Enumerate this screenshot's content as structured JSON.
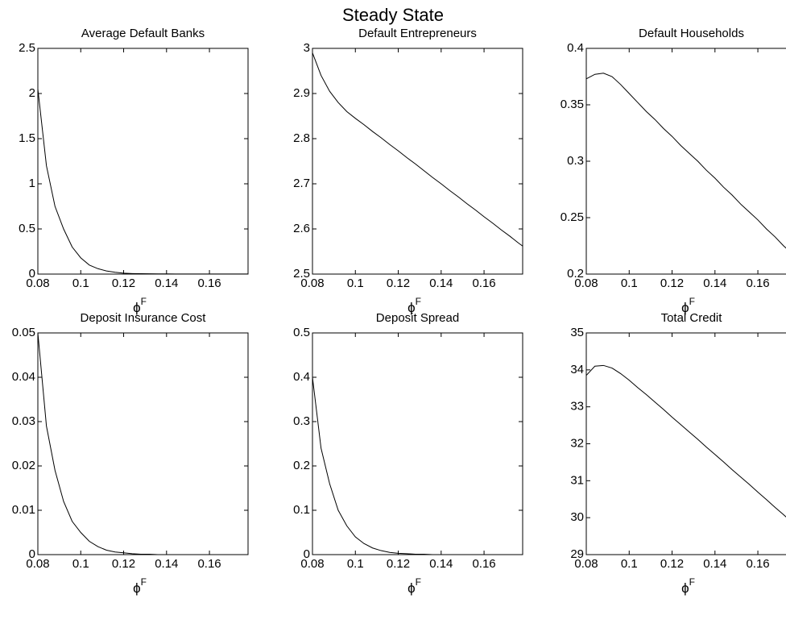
{
  "title": "Steady State",
  "chart_data": [
    {
      "type": "line",
      "title": "Average Default Banks",
      "xlabel": {
        "symbol": "ϕ",
        "superscript": "F"
      },
      "xlim": [
        0.08,
        0.178
      ],
      "xticks": [
        0.08,
        0.1,
        0.12,
        0.14,
        0.16
      ],
      "ylim": [
        0,
        2.5
      ],
      "yticks": [
        0,
        0.5,
        1,
        1.5,
        2,
        2.5
      ],
      "x": [
        0.08,
        0.084,
        0.088,
        0.092,
        0.096,
        0.1,
        0.104,
        0.108,
        0.112,
        0.116,
        0.12,
        0.124,
        0.128,
        0.132,
        0.136,
        0.14,
        0.144,
        0.148,
        0.152,
        0.156,
        0.16,
        0.164,
        0.168,
        0.172,
        0.176,
        0.178
      ],
      "series": [
        {
          "color": "#000000",
          "values": [
            2.05,
            1.2,
            0.75,
            0.5,
            0.3,
            0.18,
            0.1,
            0.06,
            0.035,
            0.02,
            0.01,
            0.006,
            0.004,
            0.003,
            0.002,
            0.002,
            0.001,
            0.001,
            0.001,
            0.001,
            0.001,
            0.001,
            0.001,
            0.001,
            0.001,
            0.001
          ]
        }
      ]
    },
    {
      "type": "line",
      "title": "Default Entrepreneurs",
      "xlabel": {
        "symbol": "ϕ",
        "superscript": "F"
      },
      "xlim": [
        0.08,
        0.178
      ],
      "xticks": [
        0.08,
        0.1,
        0.12,
        0.14,
        0.16
      ],
      "ylim": [
        2.5,
        3
      ],
      "yticks": [
        2.5,
        2.6,
        2.7,
        2.8,
        2.9,
        3
      ],
      "x": [
        0.08,
        0.084,
        0.088,
        0.092,
        0.096,
        0.1,
        0.104,
        0.108,
        0.112,
        0.116,
        0.12,
        0.124,
        0.128,
        0.132,
        0.136,
        0.14,
        0.144,
        0.148,
        0.152,
        0.156,
        0.16,
        0.164,
        0.168,
        0.172,
        0.176,
        0.178
      ],
      "series": [
        {
          "color": "#000000",
          "values": [
            2.99,
            2.94,
            2.905,
            2.88,
            2.86,
            2.845,
            2.831,
            2.816,
            2.802,
            2.787,
            2.773,
            2.758,
            2.744,
            2.729,
            2.714,
            2.7,
            2.685,
            2.671,
            2.656,
            2.642,
            2.627,
            2.613,
            2.598,
            2.584,
            2.569,
            2.562
          ]
        }
      ]
    },
    {
      "type": "line",
      "title": "Default Households",
      "xlabel": {
        "symbol": "ϕ",
        "superscript": "F"
      },
      "xlim": [
        0.08,
        0.178
      ],
      "xticks": [
        0.08,
        0.1,
        0.12,
        0.14,
        0.16
      ],
      "ylim": [
        0.2,
        0.4
      ],
      "yticks": [
        0.2,
        0.25,
        0.3,
        0.35,
        0.4
      ],
      "x": [
        0.08,
        0.084,
        0.088,
        0.092,
        0.096,
        0.1,
        0.104,
        0.108,
        0.112,
        0.116,
        0.12,
        0.124,
        0.128,
        0.132,
        0.136,
        0.14,
        0.144,
        0.148,
        0.152,
        0.156,
        0.16,
        0.164,
        0.168,
        0.172,
        0.176,
        0.178
      ],
      "series": [
        {
          "color": "#000000",
          "values": [
            0.373,
            0.377,
            0.378,
            0.375,
            0.368,
            0.36,
            0.352,
            0.344,
            0.337,
            0.329,
            0.322,
            0.314,
            0.307,
            0.3,
            0.292,
            0.285,
            0.277,
            0.27,
            0.262,
            0.255,
            0.248,
            0.24,
            0.233,
            0.225,
            0.218,
            0.214
          ]
        }
      ]
    },
    {
      "type": "line",
      "title": "Deposit Insurance Cost",
      "xlabel": {
        "symbol": "ϕ",
        "superscript": "F"
      },
      "xlim": [
        0.08,
        0.178
      ],
      "xticks": [
        0.08,
        0.1,
        0.12,
        0.14,
        0.16
      ],
      "ylim": [
        0,
        0.05
      ],
      "yticks": [
        0,
        0.01,
        0.02,
        0.03,
        0.04,
        0.05
      ],
      "x": [
        0.08,
        0.084,
        0.088,
        0.092,
        0.096,
        0.1,
        0.104,
        0.108,
        0.112,
        0.116,
        0.12,
        0.124,
        0.128,
        0.132,
        0.136,
        0.14,
        0.144,
        0.148,
        0.152,
        0.156,
        0.16,
        0.164,
        0.168,
        0.172,
        0.176,
        0.178
      ],
      "series": [
        {
          "color": "#000000",
          "values": [
            0.05,
            0.029,
            0.019,
            0.012,
            0.0075,
            0.005,
            0.003,
            0.0018,
            0.001,
            0.0006,
            0.0004,
            0.0002,
            0.0001,
            0.0001,
            0,
            0,
            0,
            0,
            0,
            0,
            0,
            0,
            0,
            0,
            0,
            0
          ]
        }
      ]
    },
    {
      "type": "line",
      "title": "Deposit Spread",
      "xlabel": {
        "symbol": "ϕ",
        "superscript": "F"
      },
      "xlim": [
        0.08,
        0.178
      ],
      "xticks": [
        0.08,
        0.1,
        0.12,
        0.14,
        0.16
      ],
      "ylim": [
        0,
        0.5
      ],
      "yticks": [
        0,
        0.1,
        0.2,
        0.3,
        0.4,
        0.5
      ],
      "x": [
        0.08,
        0.084,
        0.088,
        0.092,
        0.096,
        0.1,
        0.104,
        0.108,
        0.112,
        0.116,
        0.12,
        0.124,
        0.128,
        0.132,
        0.136,
        0.14,
        0.144,
        0.148,
        0.152,
        0.156,
        0.16,
        0.164,
        0.168,
        0.172,
        0.176,
        0.178
      ],
      "series": [
        {
          "color": "#000000",
          "values": [
            0.4,
            0.24,
            0.16,
            0.1,
            0.065,
            0.04,
            0.025,
            0.015,
            0.009,
            0.005,
            0.003,
            0.002,
            0.001,
            0.001,
            0,
            0,
            0,
            0,
            0,
            0,
            0,
            0,
            0,
            0,
            0,
            0
          ]
        }
      ]
    },
    {
      "type": "line",
      "title": "Total Credit",
      "xlabel": {
        "symbol": "ϕ",
        "superscript": "F"
      },
      "xlim": [
        0.08,
        0.178
      ],
      "xticks": [
        0.08,
        0.1,
        0.12,
        0.14,
        0.16
      ],
      "ylim": [
        29,
        35
      ],
      "yticks": [
        29,
        30,
        31,
        32,
        33,
        34,
        35
      ],
      "x": [
        0.08,
        0.084,
        0.088,
        0.092,
        0.096,
        0.1,
        0.104,
        0.108,
        0.112,
        0.116,
        0.12,
        0.124,
        0.128,
        0.132,
        0.136,
        0.14,
        0.144,
        0.148,
        0.152,
        0.156,
        0.16,
        0.164,
        0.168,
        0.172,
        0.176,
        0.178
      ],
      "series": [
        {
          "color": "#000000",
          "values": [
            33.85,
            34.1,
            34.12,
            34.05,
            33.9,
            33.72,
            33.52,
            33.33,
            33.13,
            32.93,
            32.72,
            32.52,
            32.32,
            32.12,
            31.91,
            31.71,
            31.51,
            31.3,
            31.1,
            30.9,
            30.69,
            30.49,
            30.28,
            30.08,
            29.87,
            29.77
          ]
        }
      ]
    }
  ]
}
